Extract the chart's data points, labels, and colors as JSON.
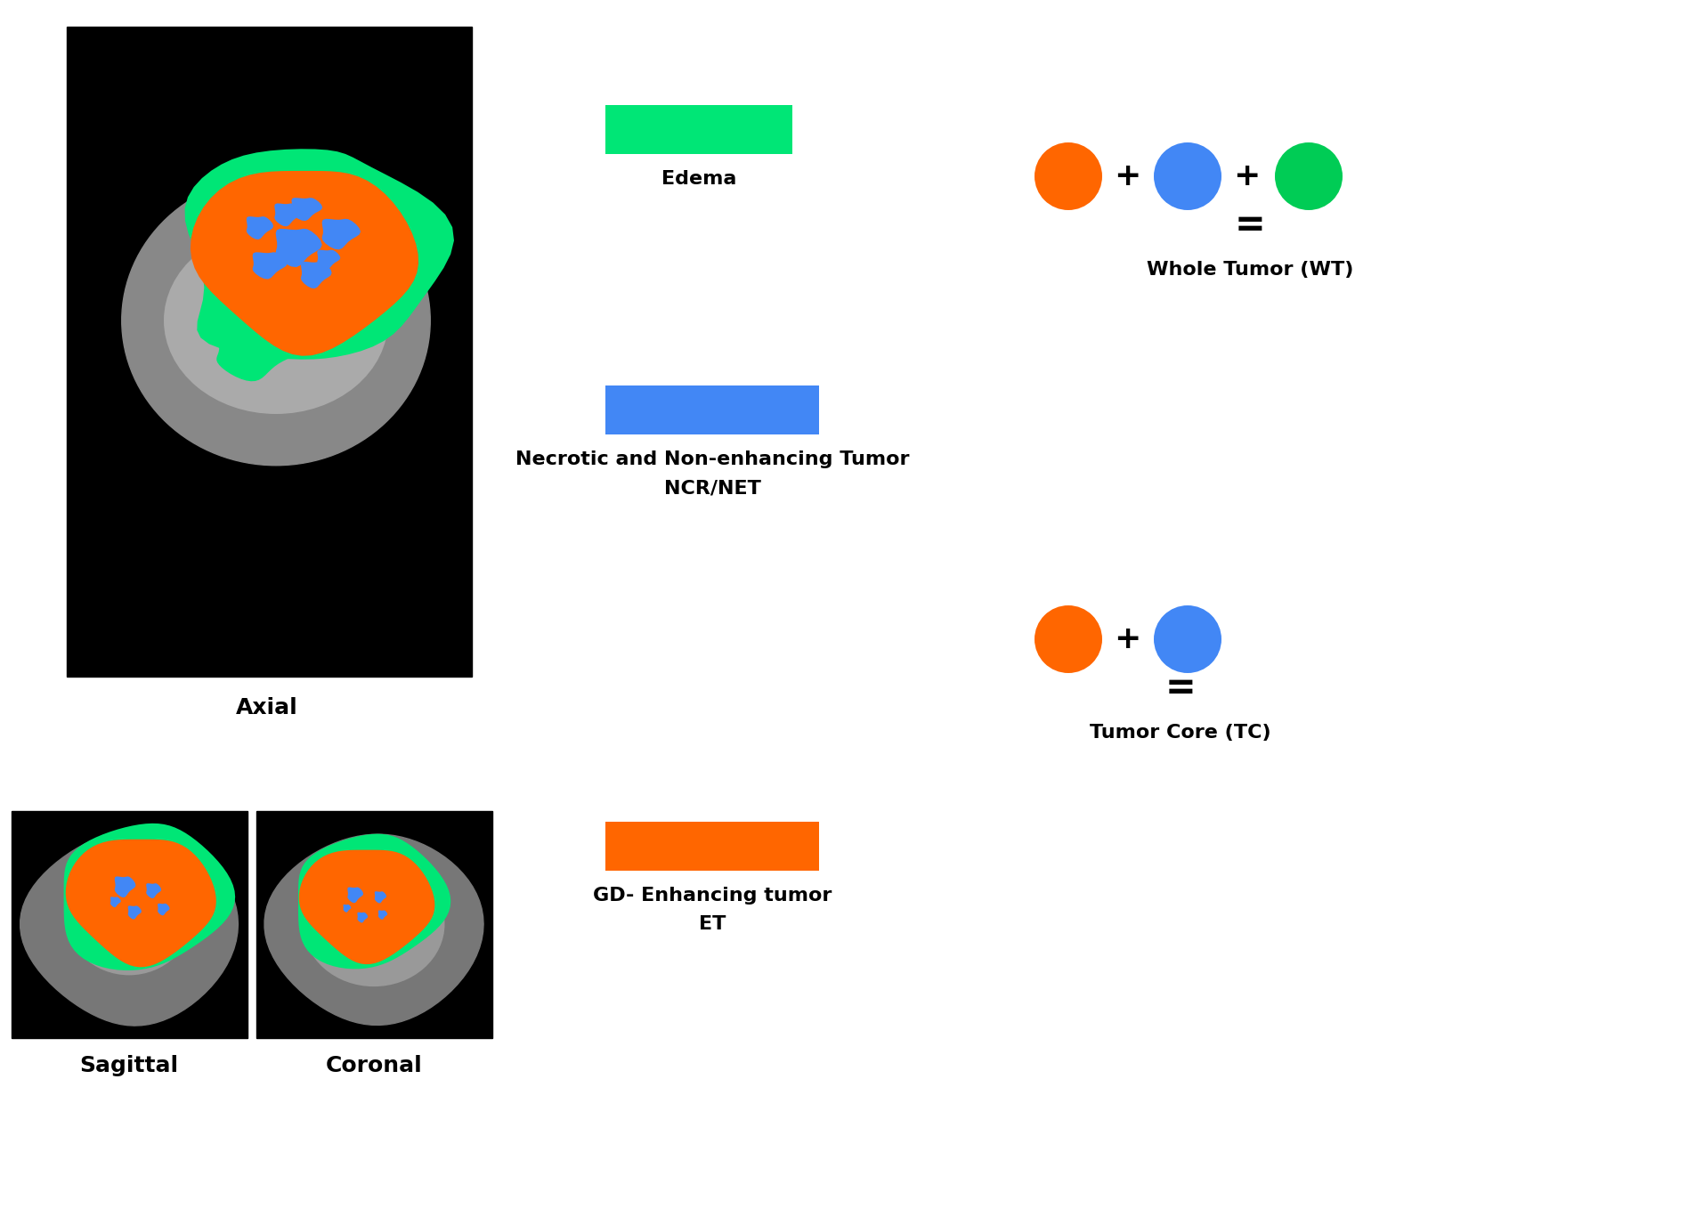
{
  "bg_color": "#ffffff",
  "colors": {
    "green": "#00e676",
    "blue": "#4287f5",
    "orange": "#ff6600",
    "dark_green": "#00cc55"
  },
  "labels": {
    "axial": "Axial",
    "sagittal": "Sagittal",
    "coronal": "Coronal",
    "edema": "Edema",
    "ncr_net_line1": "Necrotic and Non-enhancing Tumor",
    "ncr_net_line2": "NCR/NET",
    "gd_line1": "GD- Enhancing tumor",
    "gd_line2": "ET",
    "whole_tumor": "Whole Tumor (WT)",
    "tumor_core": "Tumor Core (TC)"
  },
  "font_size_labels": 16,
  "font_size_eq_labels": 15,
  "font_weight": "bold"
}
